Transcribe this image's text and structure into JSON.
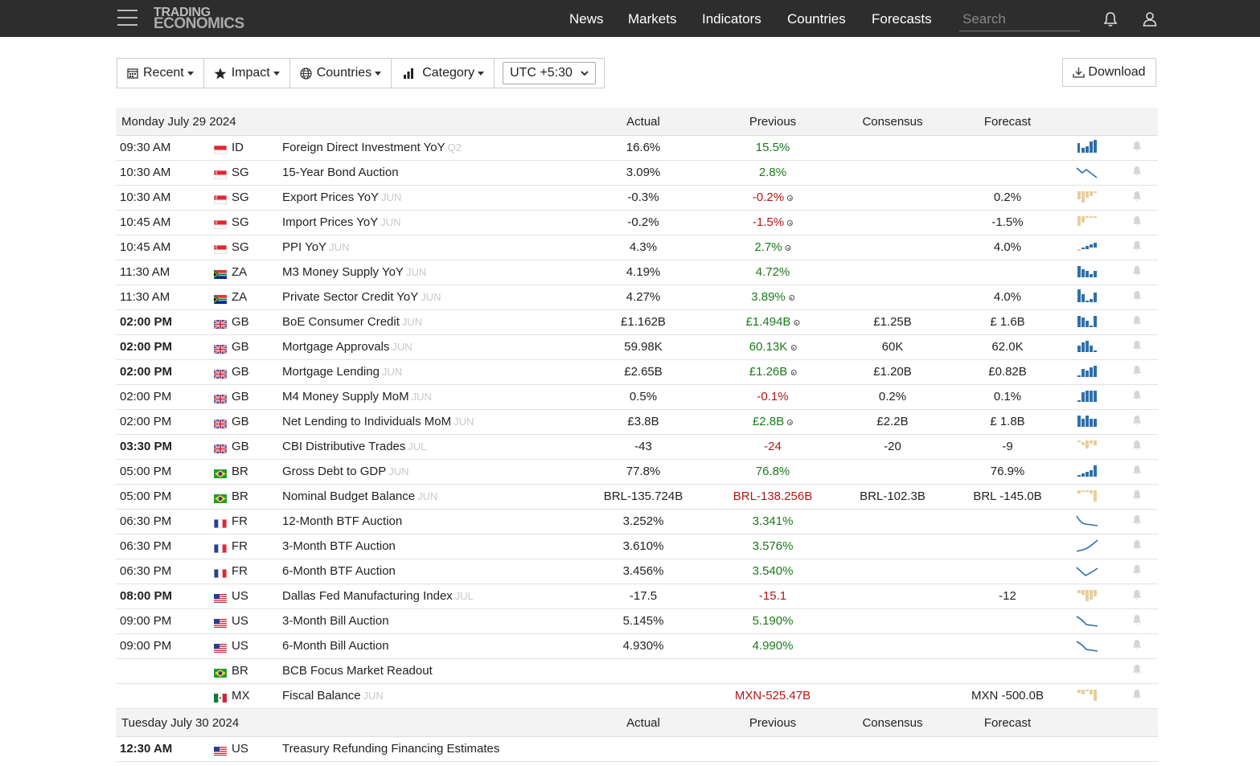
{
  "topbar": {
    "logo_line1": "TRADING",
    "logo_line2": "ECONOMICS",
    "nav": [
      "News",
      "Markets",
      "Indicators",
      "Countries",
      "Forecasts"
    ],
    "search_placeholder": "Search"
  },
  "toolbar": {
    "recent": "Recent",
    "impact": "Impact",
    "countries": "Countries",
    "category": "Category",
    "timezone": "UTC +5:30",
    "download": "Download"
  },
  "colors": {
    "topbar": "#2d2d2d",
    "positive": "#1a7a1a",
    "negative": "#b51616",
    "spark_blue": "#2f6fa8",
    "spark_tan": "#e6cf9e"
  },
  "columns": {
    "actual": "Actual",
    "previous": "Previous",
    "consensus": "Consensus",
    "forecast": "Forecast"
  },
  "days": [
    {
      "date": "Monday July 29 2024",
      "rows": [
        {
          "time": "09:30 AM",
          "bold": false,
          "country": "ID",
          "event": "Foreign Direct Investment YoY",
          "ref": "Q2",
          "actual": "16.6%",
          "previous": "15.5%",
          "prev_color": "green",
          "revised": false,
          "consensus": "",
          "forecast": "",
          "spark": "bars-blue-1"
        },
        {
          "time": "10:30 AM",
          "bold": false,
          "country": "SG",
          "event": "15-Year Bond Auction",
          "ref": "",
          "actual": "3.09%",
          "previous": "2.8%",
          "prev_color": "green",
          "revised": false,
          "consensus": "",
          "forecast": "",
          "spark": "line-down-zig"
        },
        {
          "time": "10:30 AM",
          "bold": false,
          "country": "SG",
          "event": "Export Prices YoY",
          "ref": "JUN",
          "actual": "-0.3%",
          "previous": "-0.2%",
          "prev_color": "red",
          "revised": true,
          "consensus": "",
          "forecast": "0.2%",
          "spark": "bars-tan-1"
        },
        {
          "time": "10:45 AM",
          "bold": false,
          "country": "SG",
          "event": "Import Prices YoY",
          "ref": "JUN",
          "actual": "-0.2%",
          "previous": "-1.5%",
          "prev_color": "red",
          "revised": true,
          "consensus": "",
          "forecast": "-1.5%",
          "spark": "bars-tan-2"
        },
        {
          "time": "10:45 AM",
          "bold": false,
          "country": "SG",
          "event": "PPI YoY",
          "ref": "JUN",
          "actual": "4.3%",
          "previous": "2.7%",
          "prev_color": "green",
          "revised": true,
          "consensus": "",
          "forecast": "4.0%",
          "spark": "bars-mixed-1"
        },
        {
          "time": "11:30 AM",
          "bold": false,
          "country": "ZA",
          "event": "M3 Money Supply YoY",
          "ref": "JUN",
          "actual": "4.19%",
          "previous": "4.72%",
          "prev_color": "green",
          "revised": false,
          "consensus": "",
          "forecast": "",
          "spark": "bars-blue-2"
        },
        {
          "time": "11:30 AM",
          "bold": false,
          "country": "ZA",
          "event": "Private Sector Credit YoY",
          "ref": "JUN",
          "actual": "4.27%",
          "previous": "3.89%",
          "prev_color": "green",
          "revised": true,
          "consensus": "",
          "forecast": "4.0%",
          "spark": "bars-blue-3"
        },
        {
          "time": "02:00 PM",
          "bold": true,
          "country": "GB",
          "event": "BoE Consumer Credit",
          "ref": "JUN",
          "actual": "£1.162B",
          "previous": "£1.494B",
          "prev_color": "green",
          "revised": true,
          "consensus": "£1.25B",
          "forecast": "£ 1.6B",
          "spark": "bars-blue-4"
        },
        {
          "time": "02:00 PM",
          "bold": true,
          "country": "GB",
          "event": "Mortgage Approvals",
          "ref": "JUN",
          "actual": "59.98K",
          "previous": "60.13K",
          "prev_color": "green",
          "revised": true,
          "consensus": "60K",
          "forecast": "62.0K",
          "spark": "bars-blue-5"
        },
        {
          "time": "02:00 PM",
          "bold": true,
          "country": "GB",
          "event": "Mortgage Lending",
          "ref": "JUN",
          "actual": "£2.65B",
          "previous": "£1.26B",
          "prev_color": "green",
          "revised": true,
          "consensus": "£1.20B",
          "forecast": "£0.82B",
          "spark": "bars-blue-6"
        },
        {
          "time": "02:00 PM",
          "bold": false,
          "country": "GB",
          "event": "M4 Money Supply MoM",
          "ref": "JUN",
          "actual": "0.5%",
          "previous": "-0.1%",
          "prev_color": "red",
          "revised": false,
          "consensus": "0.2%",
          "forecast": "0.1%",
          "spark": "bars-blue-7"
        },
        {
          "time": "02:00 PM",
          "bold": false,
          "country": "GB",
          "event": "Net Lending to Individuals MoM",
          "ref": "JUN",
          "actual": "£3.8B",
          "previous": "£2.8B",
          "prev_color": "green",
          "revised": true,
          "consensus": "£2.2B",
          "forecast": "£ 1.8B",
          "spark": "bars-blue-8"
        },
        {
          "time": "03:30 PM",
          "bold": true,
          "country": "GB",
          "event": "CBI Distributive Trades",
          "ref": "JUL",
          "actual": "-43",
          "previous": "-24",
          "prev_color": "red",
          "revised": false,
          "consensus": "-20",
          "forecast": "-9",
          "spark": "bars-tan-3"
        },
        {
          "time": "05:00 PM",
          "bold": false,
          "country": "BR",
          "event": "Gross Debt to GDP",
          "ref": "JUN",
          "actual": "77.8%",
          "previous": "76.8%",
          "prev_color": "green",
          "revised": false,
          "consensus": "",
          "forecast": "76.9%",
          "spark": "bars-blue-9"
        },
        {
          "time": "05:00 PM",
          "bold": false,
          "country": "BR",
          "event": "Nominal Budget Balance",
          "ref": "JUN",
          "actual": "BRL-135.724B",
          "previous": "BRL-138.256B",
          "prev_color": "red",
          "revised": false,
          "consensus": "BRL-102.3B",
          "forecast": "BRL -145.0B",
          "spark": "bars-tan-4"
        },
        {
          "time": "06:30 PM",
          "bold": false,
          "country": "FR",
          "event": "12-Month BTF Auction",
          "ref": "",
          "actual": "3.252%",
          "previous": "3.341%",
          "prev_color": "green",
          "revised": false,
          "consensus": "",
          "forecast": "",
          "spark": "line-down"
        },
        {
          "time": "06:30 PM",
          "bold": false,
          "country": "FR",
          "event": "3-Month BTF Auction",
          "ref": "",
          "actual": "3.610%",
          "previous": "3.576%",
          "prev_color": "green",
          "revised": false,
          "consensus": "",
          "forecast": "",
          "spark": "line-up"
        },
        {
          "time": "06:30 PM",
          "bold": false,
          "country": "FR",
          "event": "6-Month BTF Auction",
          "ref": "",
          "actual": "3.456%",
          "previous": "3.540%",
          "prev_color": "green",
          "revised": false,
          "consensus": "",
          "forecast": "",
          "spark": "line-v"
        },
        {
          "time": "08:00 PM",
          "bold": true,
          "country": "US",
          "event": "Dallas Fed Manufacturing Index",
          "ref": "JUL",
          "actual": "-17.5",
          "previous": "-15.1",
          "prev_color": "red",
          "revised": false,
          "consensus": "",
          "forecast": "-12",
          "spark": "bars-tan-5"
        },
        {
          "time": "09:00 PM",
          "bold": false,
          "country": "US",
          "event": "3-Month Bill Auction",
          "ref": "",
          "actual": "5.145%",
          "previous": "5.190%",
          "prev_color": "green",
          "revised": false,
          "consensus": "",
          "forecast": "",
          "spark": "line-down2"
        },
        {
          "time": "09:00 PM",
          "bold": false,
          "country": "US",
          "event": "6-Month Bill Auction",
          "ref": "",
          "actual": "4.930%",
          "previous": "4.990%",
          "prev_color": "green",
          "revised": false,
          "consensus": "",
          "forecast": "",
          "spark": "line-down2"
        },
        {
          "time": "",
          "bold": false,
          "country": "BR",
          "event": "BCB Focus Market Readout",
          "ref": "",
          "actual": "",
          "previous": "",
          "prev_color": "green",
          "revised": false,
          "consensus": "",
          "forecast": "",
          "spark": "none"
        },
        {
          "time": "",
          "bold": false,
          "country": "MX",
          "event": "Fiscal Balance",
          "ref": "JUN",
          "actual": "",
          "previous": "MXN-525.47B",
          "prev_color": "red",
          "revised": false,
          "consensus": "",
          "forecast": "MXN -500.0B",
          "spark": "bars-tan-6"
        }
      ]
    },
    {
      "date": "Tuesday July 30 2024",
      "rows": [
        {
          "time": "12:30 AM",
          "bold": true,
          "country": "US",
          "event": "Treasury Refunding Financing Estimates",
          "ref": "",
          "actual": "",
          "previous": "",
          "prev_color": "green",
          "revised": false,
          "consensus": "",
          "forecast": "",
          "spark": "none",
          "nobell": true
        }
      ]
    }
  ]
}
